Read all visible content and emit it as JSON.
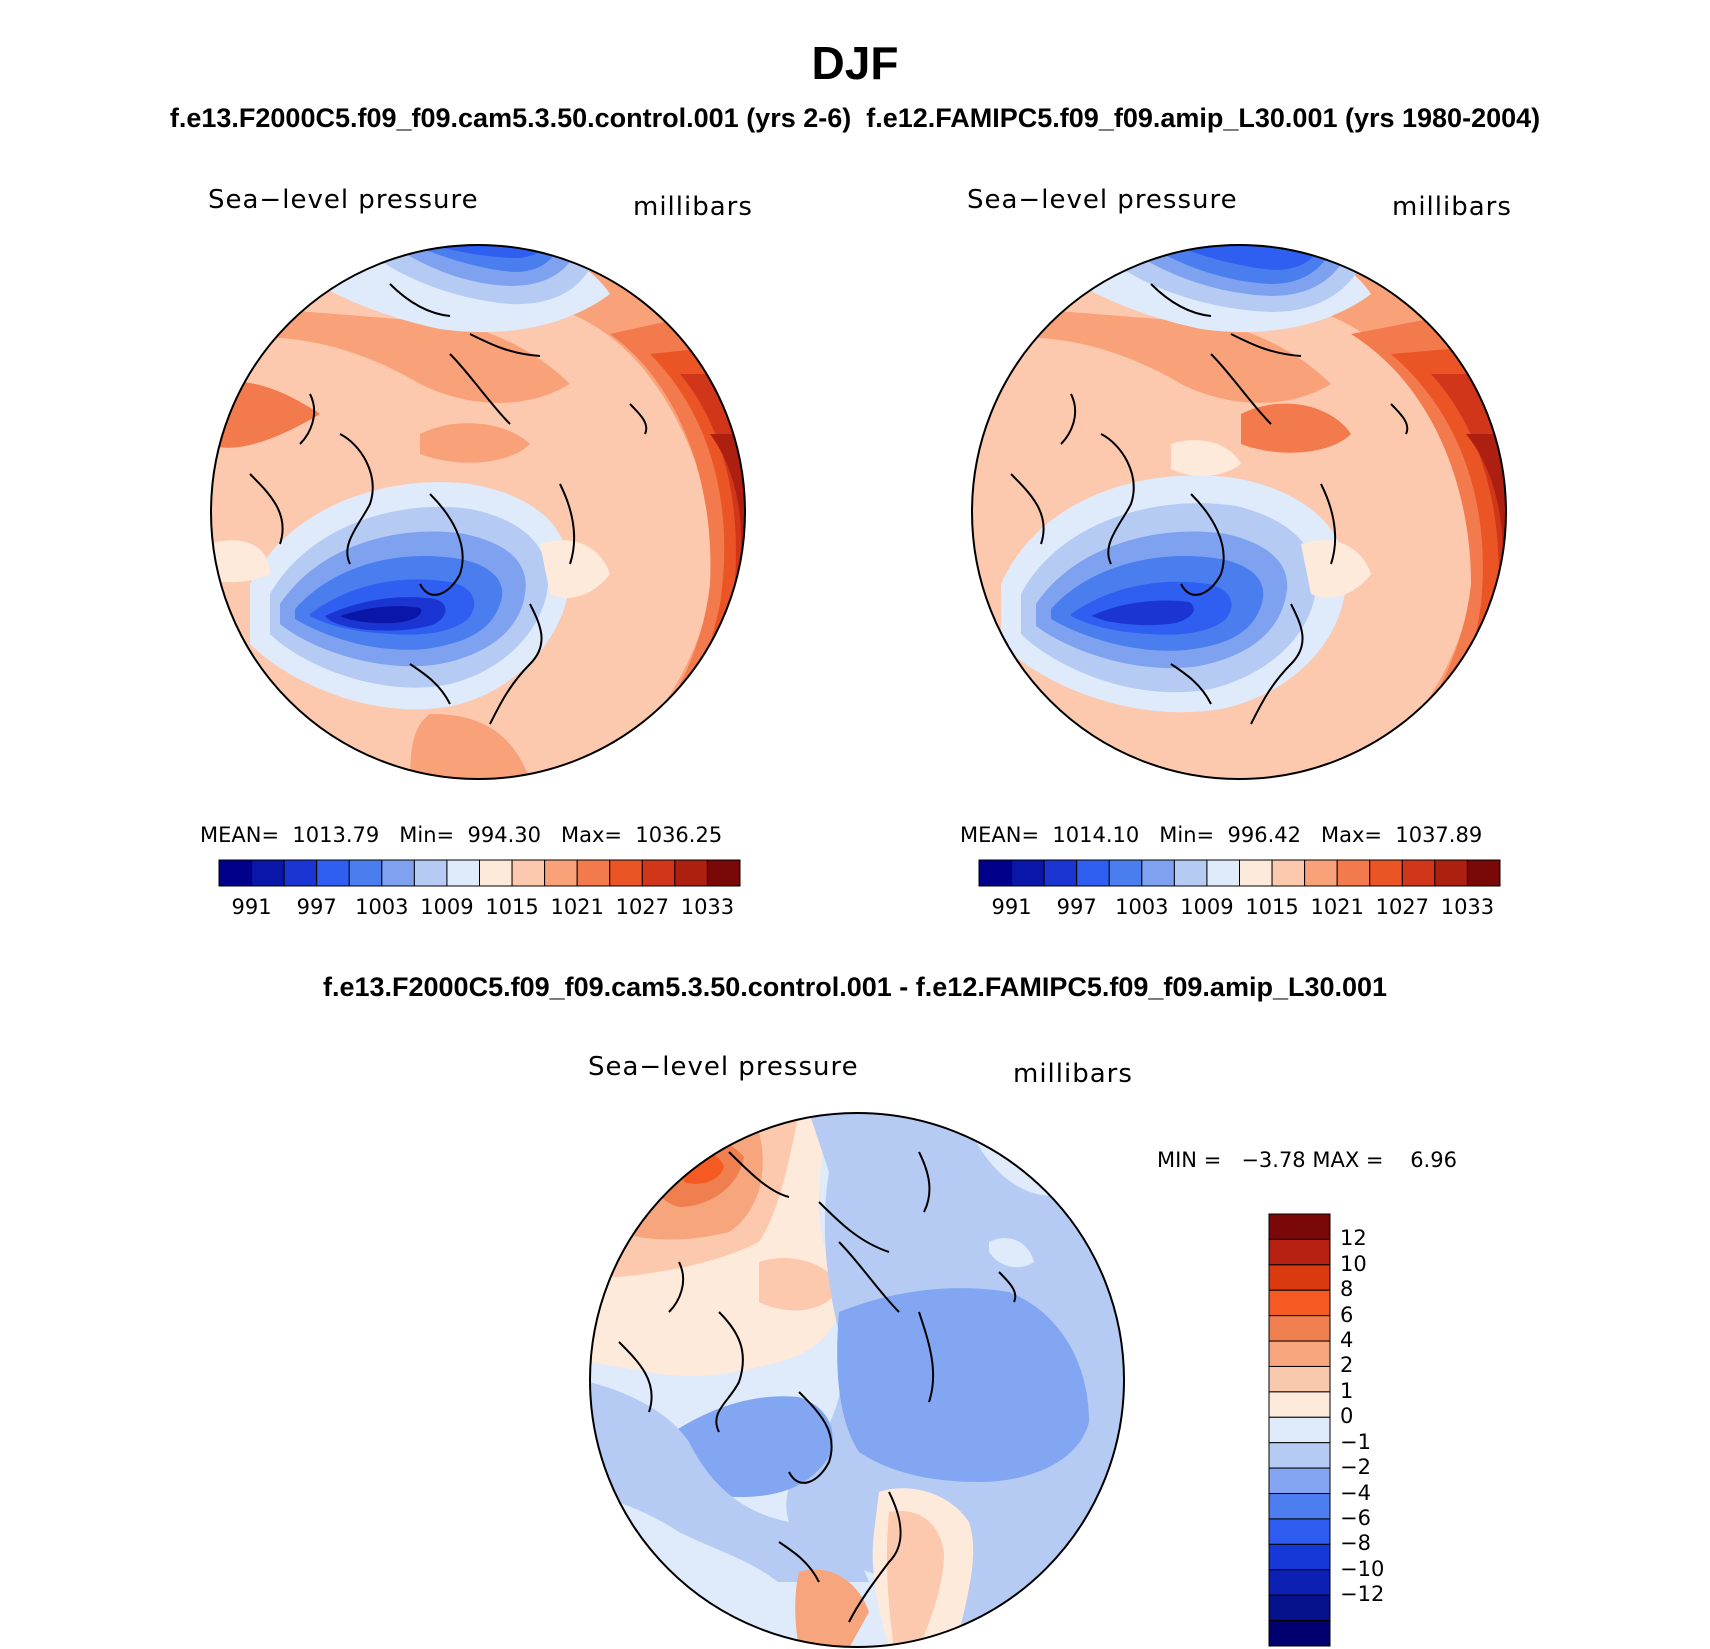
{
  "figure": {
    "season": "DJF",
    "runs_title": "f.e13.F2000C5.f09_f09.cam5.3.50.control.001 (yrs 2-6)  f.e12.FAMIPC5.f09_f09.amip_L30.001 (yrs 1980-2004)",
    "diff_title": "f.e13.F2000C5.f09_f09.cam5.3.50.control.001 - f.e12.FAMIPC5.f09_f09.amip_L30.001"
  },
  "panels": [
    {
      "variable": "Sea−level pressure",
      "units": "millibars",
      "stats": "MEAN=  1013.79   Min=  994.30   Max=  1036.25"
    },
    {
      "variable": "Sea−level pressure",
      "units": "millibars",
      "stats": "MEAN=  1014.10   Min=  996.42   Max=  1037.89"
    },
    {
      "variable": "Sea−level pressure",
      "units": "millibars",
      "stats": "MIN =   −3.78 MAX =    6.96"
    }
  ],
  "colorbar_top": {
    "colors": [
      "#00008b",
      "#0a16a8",
      "#1a35d2",
      "#2e5ff0",
      "#4a7eee",
      "#7fa2f0",
      "#b5cbf4",
      "#dfeafb",
      "#fdeadb",
      "#fcc9ae",
      "#f9a27a",
      "#f27a4c",
      "#eb5424",
      "#d1361a",
      "#ad1f10",
      "#7a0808"
    ],
    "labels": [
      "991",
      "997",
      "1003",
      "1009",
      "1015",
      "1021",
      "1027",
      "1033"
    ]
  },
  "colorbar_diff": {
    "colors": [
      "#7a0808",
      "#b52010",
      "#d93a10",
      "#f55a22",
      "#f07f50",
      "#f6a57c",
      "#f9c9ad",
      "#fdeadb",
      "#dfeafb",
      "#b5cbf4",
      "#82a6f2",
      "#4d7eef",
      "#2f5cf0",
      "#1538d6",
      "#0c20b4",
      "#05128c",
      "#000070"
    ],
    "labels": [
      "12",
      "10",
      "8",
      "6",
      "4",
      "2",
      "1",
      "0",
      "−1",
      "−2",
      "−4",
      "−6",
      "−8",
      "−10",
      "−12"
    ]
  }
}
